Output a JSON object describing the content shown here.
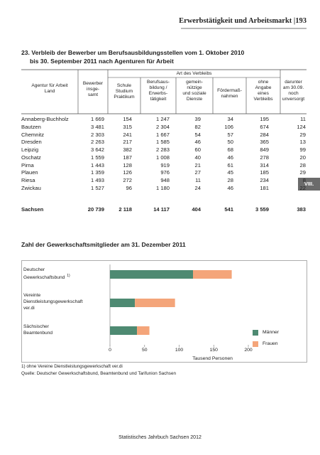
{
  "header": {
    "text": "Erwerbstätigkeit und Arbeitsmarkt |193"
  },
  "table": {
    "title": [
      "23. Verbleib der Bewerber um Berufsausbildungsstellen vom 1. Oktober 2010",
      "bis 30. September 2011 nach Agenturen für Arbeit"
    ],
    "group_header": "Art des Verbleibs",
    "columns": [
      "Agentur für Arbeit\nLand",
      "Bewerber\ninsge-\nsamt",
      "Schule\nStudium\nPraktikum",
      "Berufsaus-\nbildung /\nErwerbs-\ntätigkeit",
      "gemein-\nnützige\nund soziale\nDienste",
      "Fördermaß-\nnahmen",
      "ohne\nAngabe\neines\nVerbleibs",
      "darunter\nam 30.09.\nnoch\nunversorgt"
    ],
    "rows": [
      [
        "Annaberg-Buchholz",
        "1 669",
        "154",
        "1 247",
        "39",
        "34",
        "195",
        "11"
      ],
      [
        "Bautzen",
        "3 481",
        "315",
        "2 304",
        "82",
        "106",
        "674",
        "124"
      ],
      [
        "Chemnitz",
        "2 303",
        "241",
        "1 667",
        "54",
        "57",
        "284",
        "29"
      ],
      [
        "Dresden",
        "2 263",
        "217",
        "1 585",
        "46",
        "50",
        "365",
        "13"
      ],
      [
        "Leipzig",
        "3 642",
        "382",
        "2 283",
        "60",
        "68",
        "849",
        "99"
      ],
      [
        "Oschatz",
        "1 559",
        "187",
        "1 008",
        "40",
        "46",
        "278",
        "20"
      ],
      [
        "Pirna",
        "1 443",
        "128",
        "919",
        "21",
        "61",
        "314",
        "28"
      ],
      [
        "Plauen",
        "1 359",
        "126",
        "976",
        "27",
        "45",
        "185",
        "29"
      ],
      [
        "Riesa",
        "1 493",
        "272",
        "948",
        "11",
        "28",
        "234",
        "8"
      ],
      [
        "Zwickau",
        "1 527",
        "96",
        "1 180",
        "24",
        "46",
        "181",
        "22"
      ]
    ],
    "total": [
      "Sachsen",
      "20 739",
      "2 118",
      "14 117",
      "404",
      "541",
      "3 559",
      "383"
    ]
  },
  "chapter_tab": "VIII.",
  "chart_data": {
    "type": "bar",
    "orientation": "horizontal",
    "stacked": true,
    "title": "Zahl der Gewerkschaftsmitglieder am 31. Dezember 2011",
    "categories": [
      "Deutscher\nGewerkschaftsbund",
      "Vereinte\nDienstleistungsgewerkschaft\nver.di",
      "Sächsischer\nBeamtenbund"
    ],
    "category_notes": [
      "1)",
      null,
      null
    ],
    "series": [
      {
        "name": "Männer",
        "color": "#4e8a72",
        "values": [
          120,
          36,
          39
        ]
      },
      {
        "name": "Frauen",
        "color": "#f4a57a",
        "values": [
          56,
          58,
          18
        ]
      }
    ],
    "xlim": [
      0,
      200
    ],
    "xticks": [
      0,
      50,
      100,
      150,
      200
    ],
    "xlabel": "Tausend Personen",
    "legend": "right"
  },
  "footnotes": [
    "1) ohne Vereine Dienstleistungsgewerkschaft ver.di",
    "Quelle: Deutscher Gewerkschaftsbund, Beamtenbund und Tarifunion Sachsen"
  ],
  "footer": "Statistisches Jahrbuch Sachsen 2012"
}
